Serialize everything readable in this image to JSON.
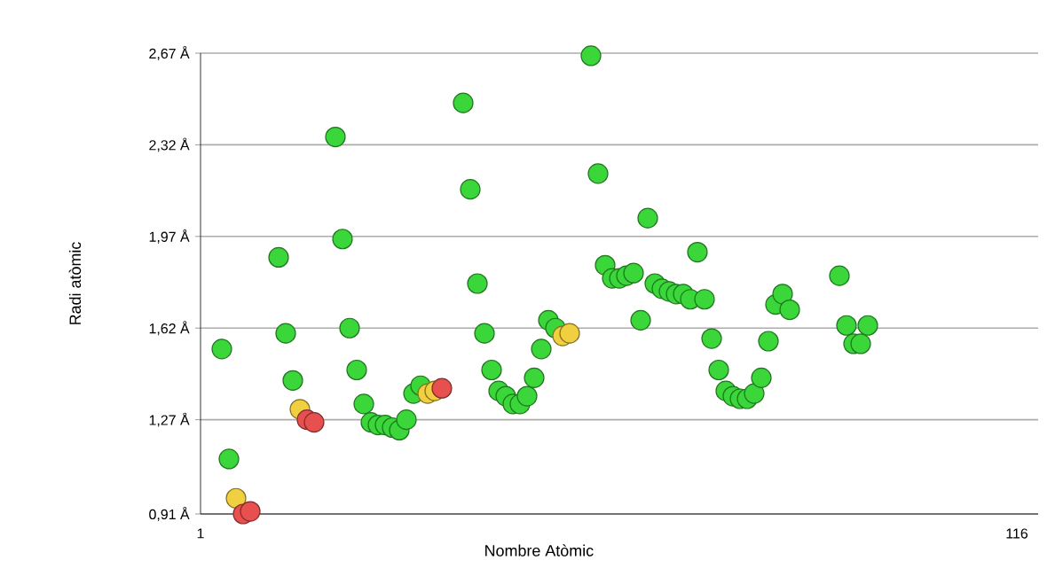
{
  "chart_data": {
    "type": "scatter",
    "xlabel": "Nombre Atòmic",
    "ylabel": "Radi atòmic",
    "xlim": [
      1,
      119
    ],
    "xticks": [
      1,
      116
    ],
    "ylim": [
      0.91,
      2.67
    ],
    "yticks": [
      {
        "value": 0.91,
        "label": "0,91 Å"
      },
      {
        "value": 1.27,
        "label": "1,27 Å"
      },
      {
        "value": 1.62,
        "label": "1,62 Å"
      },
      {
        "value": 1.97,
        "label": "1,97 Å"
      },
      {
        "value": 2.32,
        "label": "2,32 Å"
      },
      {
        "value": 2.67,
        "label": "2,67 Å"
      }
    ],
    "grid": "y",
    "marker": "circle",
    "x": [
      4,
      5,
      6,
      7,
      8,
      12,
      13,
      14,
      15,
      16,
      17,
      20,
      21,
      22,
      23,
      24,
      25,
      26,
      27,
      28,
      29,
      30,
      31,
      32,
      33,
      34,
      35,
      38,
      39,
      40,
      41,
      42,
      43,
      44,
      45,
      46,
      47,
      48,
      49,
      50,
      51,
      52,
      53,
      56,
      57,
      58,
      59,
      60,
      61,
      62,
      63,
      64,
      65,
      66,
      67,
      68,
      69,
      70,
      71,
      72,
      73,
      74,
      75,
      76,
      77,
      78,
      79,
      80,
      81,
      82,
      83,
      84,
      91,
      92,
      93,
      94,
      95
    ],
    "values": [
      1.54,
      1.12,
      0.97,
      0.91,
      0.92,
      1.89,
      1.6,
      1.42,
      1.31,
      1.27,
      1.26,
      2.35,
      1.96,
      1.62,
      1.46,
      1.33,
      1.26,
      1.25,
      1.25,
      1.24,
      1.23,
      1.27,
      1.37,
      1.4,
      1.37,
      1.38,
      1.39,
      2.48,
      2.15,
      1.79,
      1.6,
      1.46,
      1.38,
      1.36,
      1.33,
      1.33,
      1.36,
      1.43,
      1.54,
      1.65,
      1.62,
      1.59,
      1.6,
      2.66,
      2.21,
      1.86,
      1.81,
      1.81,
      1.82,
      1.83,
      1.65,
      2.04,
      1.79,
      1.77,
      1.76,
      1.75,
      1.75,
      1.73,
      1.91,
      1.73,
      1.58,
      1.46,
      1.38,
      1.36,
      1.35,
      1.35,
      1.37,
      1.43,
      1.57,
      1.71,
      1.75,
      1.69,
      1.82,
      1.63,
      1.56,
      1.56,
      1.63
    ],
    "colors": [
      "#3ad63a",
      "#3ad63a",
      "#f0d040",
      "#e85050",
      "#e85050",
      "#3ad63a",
      "#3ad63a",
      "#3ad63a",
      "#f0d040",
      "#e85050",
      "#e85050",
      "#3ad63a",
      "#3ad63a",
      "#3ad63a",
      "#3ad63a",
      "#3ad63a",
      "#3ad63a",
      "#3ad63a",
      "#3ad63a",
      "#3ad63a",
      "#3ad63a",
      "#3ad63a",
      "#3ad63a",
      "#3ad63a",
      "#f0d040",
      "#f0d040",
      "#e85050",
      "#3ad63a",
      "#3ad63a",
      "#3ad63a",
      "#3ad63a",
      "#3ad63a",
      "#3ad63a",
      "#3ad63a",
      "#3ad63a",
      "#3ad63a",
      "#3ad63a",
      "#3ad63a",
      "#3ad63a",
      "#3ad63a",
      "#3ad63a",
      "#f0d040",
      "#f0d040",
      "#3ad63a",
      "#3ad63a",
      "#3ad63a",
      "#3ad63a",
      "#3ad63a",
      "#3ad63a",
      "#3ad63a",
      "#3ad63a",
      "#3ad63a",
      "#3ad63a",
      "#3ad63a",
      "#3ad63a",
      "#3ad63a",
      "#3ad63a",
      "#3ad63a",
      "#3ad63a",
      "#3ad63a",
      "#3ad63a",
      "#3ad63a",
      "#3ad63a",
      "#3ad63a",
      "#3ad63a",
      "#3ad63a",
      "#3ad63a",
      "#3ad63a",
      "#3ad63a",
      "#3ad63a",
      "#3ad63a",
      "#3ad63a",
      "#3ad63a",
      "#3ad63a",
      "#3ad63a",
      "#3ad63a",
      "#3ad63a"
    ]
  }
}
